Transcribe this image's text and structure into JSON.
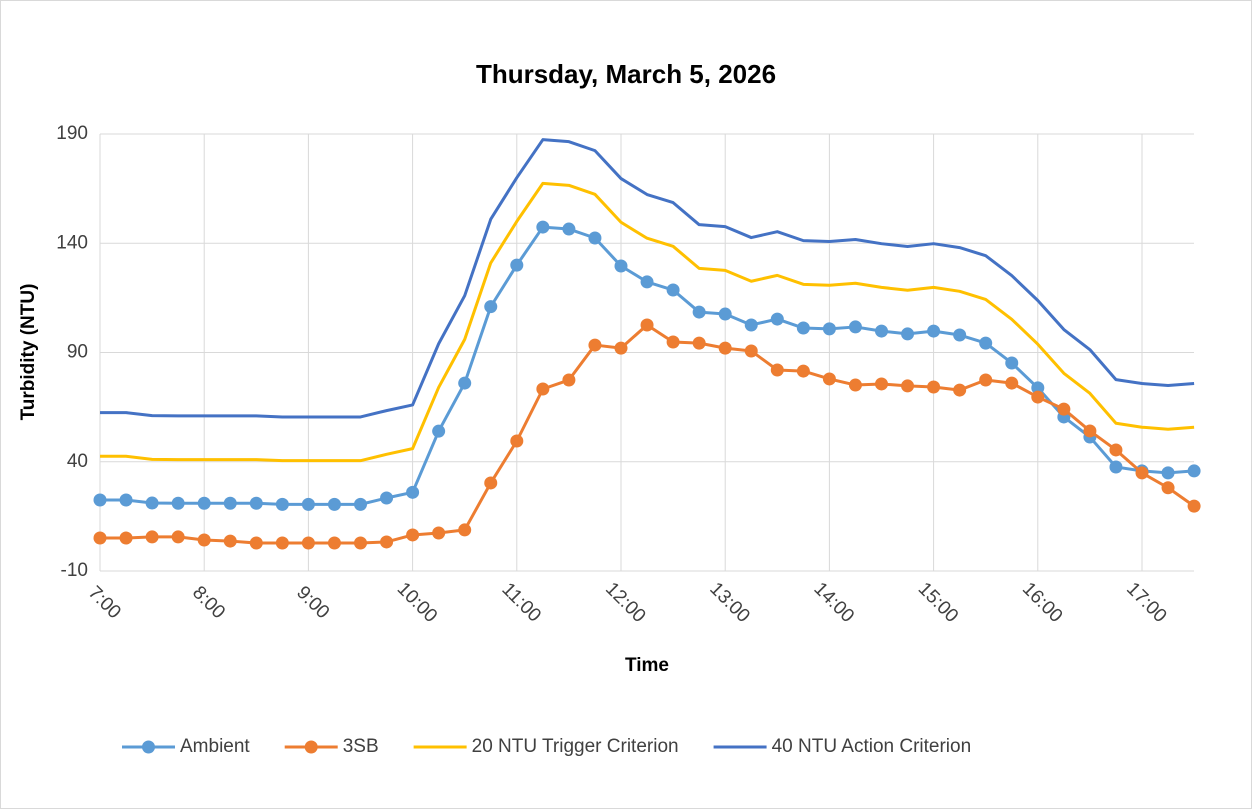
{
  "chart_data": {
    "type": "line",
    "title": "Thursday, March 5, 2026",
    "x_label": "Time",
    "y_label": "Turbidity (NTU)",
    "categories": [
      "7:00",
      null,
      null,
      null,
      "8:00",
      null,
      null,
      null,
      "9:00",
      null,
      null,
      null,
      "10:00",
      null,
      null,
      null,
      "11:00",
      null,
      null,
      null,
      "12:00",
      null,
      null,
      null,
      "13:00",
      null,
      null,
      null,
      "14:00",
      null,
      null,
      null,
      "15:00",
      null,
      null,
      null,
      "16:00",
      null,
      null,
      null,
      "17:00",
      null,
      null
    ],
    "series": [
      {
        "name": "Ambient",
        "color": "#5b9bd5",
        "markers": true,
        "values": [
          22.5,
          22.5,
          21.1,
          21,
          21,
          21,
          21,
          20.5,
          20.5,
          20.5,
          20.5,
          23.4,
          26,
          54,
          76,
          111,
          130,
          147.4,
          146.5,
          142.4,
          129.6,
          122.3,
          118.6,
          108.5,
          107.6,
          102.6,
          105.3,
          101.2,
          100.8,
          101.7,
          99.8,
          98.5,
          99.8,
          98,
          94.3,
          85.2,
          73.8,
          60.5,
          51.3,
          37.6,
          35.8,
          34.9,
          35.8
        ]
      },
      {
        "name": "3SB",
        "color": "#ed7d31",
        "markers": true,
        "values": [
          5.1,
          5.1,
          5.6,
          5.6,
          4.2,
          3.7,
          2.8,
          2.8,
          2.8,
          2.8,
          2.8,
          3.3,
          6.5,
          7.4,
          8.8,
          30.3,
          49.5,
          73.3,
          77.4,
          93.4,
          92,
          102.6,
          94.8,
          94.3,
          92,
          90.7,
          82,
          81.5,
          77.9,
          75.1,
          75.6,
          74.7,
          74.2,
          72.8,
          77.4,
          76,
          69.6,
          64.1,
          54.1,
          45.4,
          34.9,
          28.1,
          19.7
        ]
      },
      {
        "name": "20 NTU Trigger Criterion",
        "color": "#ffc000",
        "markers": false,
        "values": [
          42.5,
          42.5,
          41.1,
          41,
          41,
          41,
          41,
          40.5,
          40.5,
          40.5,
          40.5,
          43.4,
          46,
          74,
          96,
          131,
          150,
          167.4,
          166.5,
          162.4,
          149.6,
          142.3,
          138.6,
          128.5,
          127.6,
          122.6,
          125.3,
          121.2,
          120.8,
          121.7,
          119.8,
          118.5,
          119.8,
          118,
          114.3,
          105.2,
          93.8,
          80.5,
          71.3,
          57.6,
          55.8,
          54.9,
          55.8
        ]
      },
      {
        "name": "40 NTU Action Criterion",
        "color": "#4472c4",
        "markers": false,
        "values": [
          62.5,
          62.5,
          61.1,
          61,
          61,
          61,
          61,
          60.5,
          60.5,
          60.5,
          60.5,
          63.4,
          66,
          94,
          116,
          151,
          170,
          187.4,
          186.5,
          182.4,
          169.6,
          162.3,
          158.6,
          148.5,
          147.6,
          142.6,
          145.3,
          141.2,
          140.8,
          141.7,
          139.8,
          138.5,
          139.8,
          138,
          134.3,
          125.2,
          113.8,
          100.5,
          91.3,
          77.6,
          75.8,
          74.9,
          75.8
        ]
      }
    ],
    "ylim": [
      -10,
      190
    ],
    "yticks": [
      -10,
      40,
      90,
      140,
      190
    ],
    "grid": true,
    "legend": "bottom"
  }
}
